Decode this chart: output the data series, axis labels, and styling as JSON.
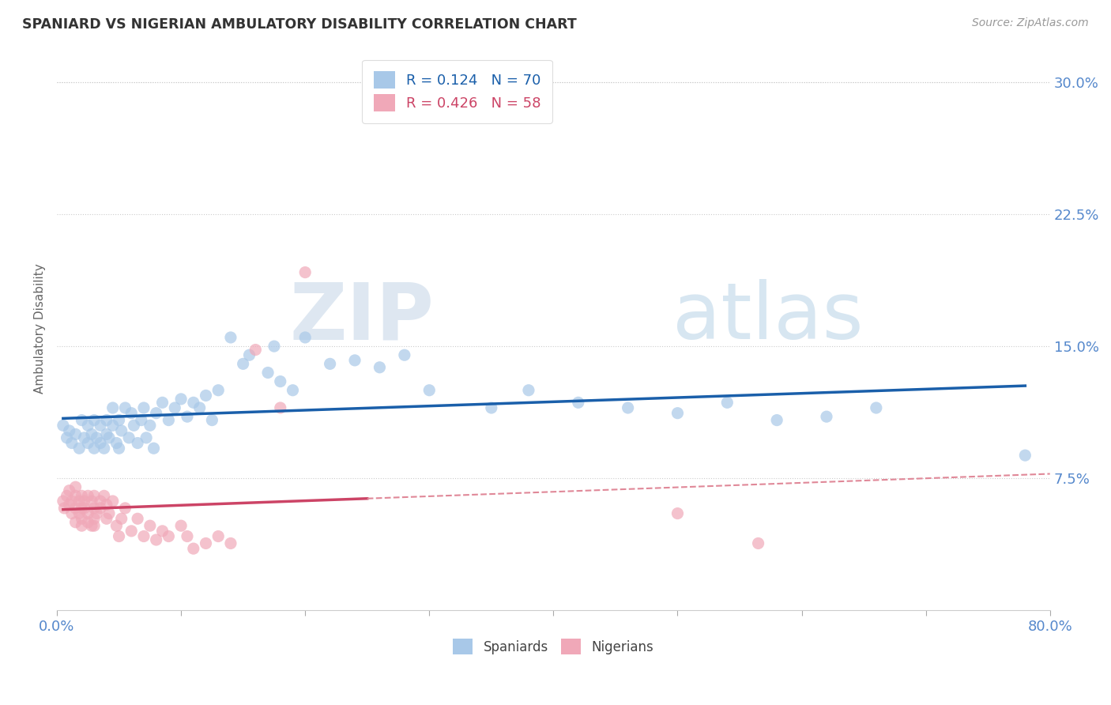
{
  "title": "SPANIARD VS NIGERIAN AMBULATORY DISABILITY CORRELATION CHART",
  "source_text": "Source: ZipAtlas.com",
  "ylabel": "Ambulatory Disability",
  "xlim": [
    0.0,
    0.8
  ],
  "ylim": [
    0.0,
    0.32
  ],
  "ytick_vals": [
    0.075,
    0.15,
    0.225,
    0.3
  ],
  "ytick_labels": [
    "7.5%",
    "15.0%",
    "22.5%",
    "30.0%"
  ],
  "xtick_vals": [
    0.0,
    0.1,
    0.2,
    0.3,
    0.4,
    0.5,
    0.6,
    0.7,
    0.8
  ],
  "xtick_labels": [
    "0.0%",
    "",
    "",
    "",
    "",
    "",
    "",
    "",
    "80.0%"
  ],
  "spaniard_color": "#a8c8e8",
  "nigerian_color": "#f0a8b8",
  "spaniard_R": 0.124,
  "spaniard_N": 70,
  "nigerian_R": 0.426,
  "nigerian_N": 58,
  "watermark_zip": "ZIP",
  "watermark_atlas": "atlas",
  "spaniard_line_color": "#1a5faa",
  "nigerian_line_color": "#cc4466",
  "nigerian_line_dash_color": "#e08898",
  "background_color": "#ffffff",
  "grid_color": "#cccccc",
  "spaniard_scatter": [
    [
      0.005,
      0.105
    ],
    [
      0.008,
      0.098
    ],
    [
      0.01,
      0.102
    ],
    [
      0.012,
      0.095
    ],
    [
      0.015,
      0.1
    ],
    [
      0.018,
      0.092
    ],
    [
      0.02,
      0.108
    ],
    [
      0.022,
      0.098
    ],
    [
      0.025,
      0.095
    ],
    [
      0.025,
      0.105
    ],
    [
      0.028,
      0.1
    ],
    [
      0.03,
      0.092
    ],
    [
      0.03,
      0.108
    ],
    [
      0.032,
      0.098
    ],
    [
      0.035,
      0.095
    ],
    [
      0.035,
      0.105
    ],
    [
      0.038,
      0.092
    ],
    [
      0.04,
      0.108
    ],
    [
      0.04,
      0.1
    ],
    [
      0.042,
      0.098
    ],
    [
      0.045,
      0.105
    ],
    [
      0.045,
      0.115
    ],
    [
      0.048,
      0.095
    ],
    [
      0.05,
      0.092
    ],
    [
      0.05,
      0.108
    ],
    [
      0.052,
      0.102
    ],
    [
      0.055,
      0.115
    ],
    [
      0.058,
      0.098
    ],
    [
      0.06,
      0.112
    ],
    [
      0.062,
      0.105
    ],
    [
      0.065,
      0.095
    ],
    [
      0.068,
      0.108
    ],
    [
      0.07,
      0.115
    ],
    [
      0.072,
      0.098
    ],
    [
      0.075,
      0.105
    ],
    [
      0.078,
      0.092
    ],
    [
      0.08,
      0.112
    ],
    [
      0.085,
      0.118
    ],
    [
      0.09,
      0.108
    ],
    [
      0.095,
      0.115
    ],
    [
      0.1,
      0.12
    ],
    [
      0.105,
      0.11
    ],
    [
      0.11,
      0.118
    ],
    [
      0.115,
      0.115
    ],
    [
      0.12,
      0.122
    ],
    [
      0.125,
      0.108
    ],
    [
      0.13,
      0.125
    ],
    [
      0.14,
      0.155
    ],
    [
      0.15,
      0.14
    ],
    [
      0.155,
      0.145
    ],
    [
      0.17,
      0.135
    ],
    [
      0.175,
      0.15
    ],
    [
      0.18,
      0.13
    ],
    [
      0.19,
      0.125
    ],
    [
      0.2,
      0.155
    ],
    [
      0.22,
      0.14
    ],
    [
      0.24,
      0.142
    ],
    [
      0.26,
      0.138
    ],
    [
      0.28,
      0.145
    ],
    [
      0.3,
      0.125
    ],
    [
      0.35,
      0.115
    ],
    [
      0.38,
      0.125
    ],
    [
      0.42,
      0.118
    ],
    [
      0.46,
      0.115
    ],
    [
      0.5,
      0.112
    ],
    [
      0.54,
      0.118
    ],
    [
      0.58,
      0.108
    ],
    [
      0.62,
      0.11
    ],
    [
      0.66,
      0.115
    ],
    [
      0.78,
      0.088
    ]
  ],
  "nigerian_scatter": [
    [
      0.005,
      0.062
    ],
    [
      0.006,
      0.058
    ],
    [
      0.008,
      0.065
    ],
    [
      0.01,
      0.06
    ],
    [
      0.01,
      0.068
    ],
    [
      0.012,
      0.055
    ],
    [
      0.012,
      0.062
    ],
    [
      0.015,
      0.058
    ],
    [
      0.015,
      0.065
    ],
    [
      0.015,
      0.07
    ],
    [
      0.015,
      0.05
    ],
    [
      0.018,
      0.055
    ],
    [
      0.018,
      0.062
    ],
    [
      0.02,
      0.058
    ],
    [
      0.02,
      0.065
    ],
    [
      0.02,
      0.052
    ],
    [
      0.02,
      0.048
    ],
    [
      0.022,
      0.062
    ],
    [
      0.022,
      0.058
    ],
    [
      0.025,
      0.055
    ],
    [
      0.025,
      0.065
    ],
    [
      0.025,
      0.05
    ],
    [
      0.028,
      0.048
    ],
    [
      0.028,
      0.062
    ],
    [
      0.03,
      0.058
    ],
    [
      0.03,
      0.065
    ],
    [
      0.03,
      0.052
    ],
    [
      0.03,
      0.048
    ],
    [
      0.032,
      0.055
    ],
    [
      0.035,
      0.062
    ],
    [
      0.035,
      0.058
    ],
    [
      0.038,
      0.065
    ],
    [
      0.04,
      0.052
    ],
    [
      0.04,
      0.06
    ],
    [
      0.042,
      0.055
    ],
    [
      0.045,
      0.062
    ],
    [
      0.048,
      0.048
    ],
    [
      0.05,
      0.042
    ],
    [
      0.052,
      0.052
    ],
    [
      0.055,
      0.058
    ],
    [
      0.06,
      0.045
    ],
    [
      0.065,
      0.052
    ],
    [
      0.07,
      0.042
    ],
    [
      0.075,
      0.048
    ],
    [
      0.08,
      0.04
    ],
    [
      0.085,
      0.045
    ],
    [
      0.09,
      0.042
    ],
    [
      0.1,
      0.048
    ],
    [
      0.105,
      0.042
    ],
    [
      0.11,
      0.035
    ],
    [
      0.12,
      0.038
    ],
    [
      0.13,
      0.042
    ],
    [
      0.14,
      0.038
    ],
    [
      0.16,
      0.148
    ],
    [
      0.18,
      0.115
    ],
    [
      0.2,
      0.192
    ],
    [
      0.5,
      0.055
    ],
    [
      0.565,
      0.038
    ]
  ]
}
